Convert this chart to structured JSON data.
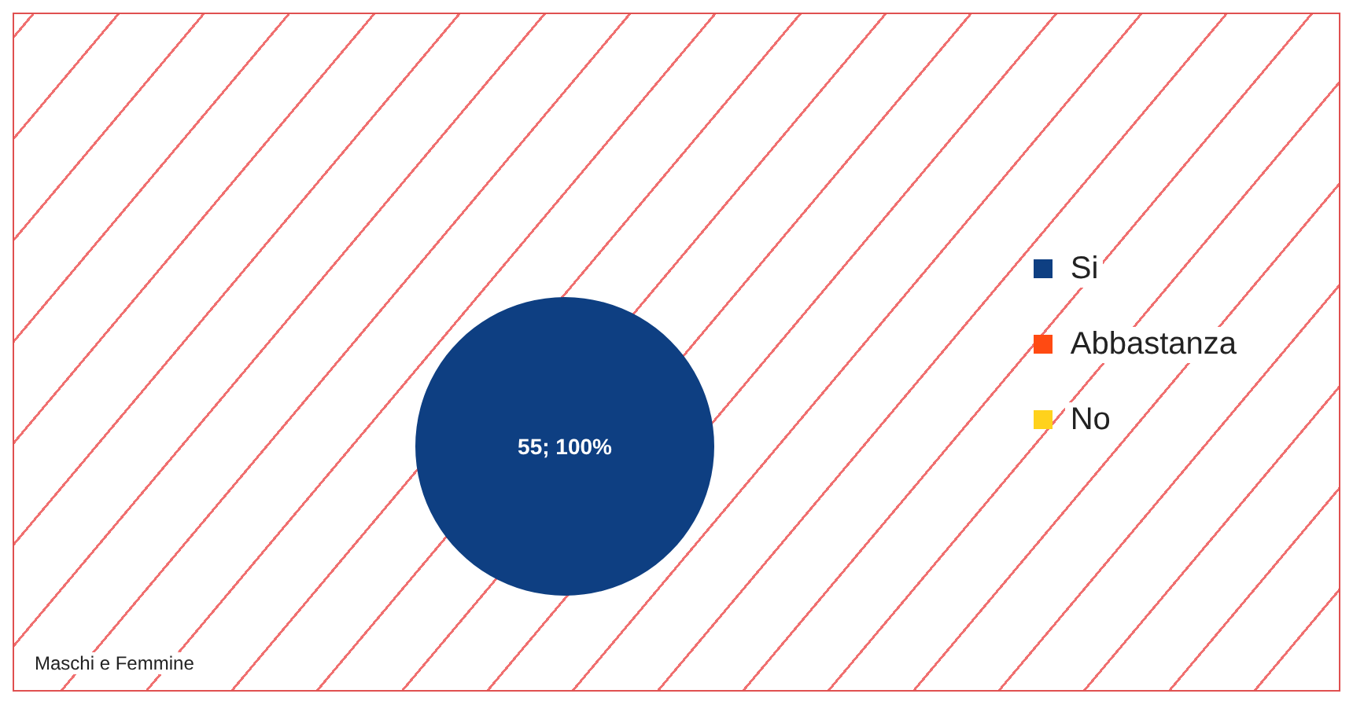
{
  "chart_data": {
    "type": "pie",
    "categories": [
      "Si",
      "Abbastanza",
      "No"
    ],
    "values": [
      55,
      0,
      0
    ],
    "colors": [
      "#0e3f82",
      "#ff4a12",
      "#ffd21c"
    ],
    "value_labels": [
      "55; 100%",
      null,
      null
    ],
    "legend": "right",
    "annotations": [
      "Maschi e Femmine"
    ]
  }
}
